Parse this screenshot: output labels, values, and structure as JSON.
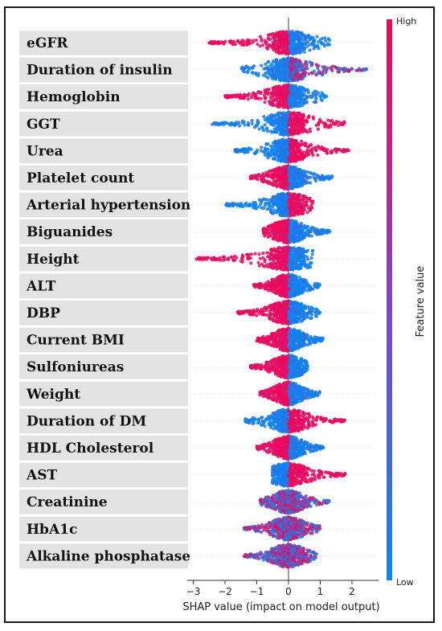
{
  "chart_data": {
    "type": "scatter",
    "subtype": "shap-beeswarm",
    "title": "",
    "xlabel": "SHAP value (impact on model output)",
    "xlim": [
      -3,
      3
    ],
    "xticks": [
      -3,
      -2,
      -1,
      0,
      1,
      2
    ],
    "colorbar": {
      "label": "Feature value",
      "high": "High",
      "low": "Low",
      "high_color": "#ff0052",
      "low_color": "#008bfb"
    },
    "features": [
      {
        "name": "eGFR",
        "min": -2.5,
        "max": 1.3,
        "mode": "split",
        "neg_color": "high",
        "pos_color": "low"
      },
      {
        "name": "Duration of insulin",
        "min": -1.5,
        "max": 2.5,
        "mode": "split",
        "neg_color": "low",
        "pos_color": "mixed"
      },
      {
        "name": "Hemoglobin",
        "min": -2.0,
        "max": 1.2,
        "mode": "split",
        "neg_color": "high",
        "pos_color": "low"
      },
      {
        "name": "GGT",
        "min": -2.4,
        "max": 1.8,
        "mode": "split",
        "neg_color": "low",
        "pos_color": "high"
      },
      {
        "name": "Urea",
        "min": -1.7,
        "max": 1.9,
        "mode": "split",
        "neg_color": "low",
        "pos_color": "high"
      },
      {
        "name": "Platelet count",
        "min": -1.2,
        "max": 1.4,
        "mode": "split",
        "neg_color": "high",
        "pos_color": "low"
      },
      {
        "name": "Arterial hypertension",
        "min": -2.0,
        "max": 0.8,
        "mode": "split",
        "neg_color": "low",
        "pos_color": "high"
      },
      {
        "name": "Biguanides",
        "min": -0.8,
        "max": 1.3,
        "mode": "split",
        "neg_color": "high",
        "pos_color": "low"
      },
      {
        "name": "Height",
        "min": -2.9,
        "max": 0.8,
        "mode": "split",
        "neg_color": "high",
        "pos_color": "low"
      },
      {
        "name": "ALT",
        "min": -1.1,
        "max": 1.0,
        "mode": "split",
        "neg_color": "high",
        "pos_color": "low"
      },
      {
        "name": "DBP",
        "min": -1.6,
        "max": 1.0,
        "mode": "split",
        "neg_color": "high",
        "pos_color": "low"
      },
      {
        "name": "Current BMI",
        "min": -1.0,
        "max": 1.1,
        "mode": "split",
        "neg_color": "high",
        "pos_color": "low"
      },
      {
        "name": "Sulfoniureas",
        "min": -1.2,
        "max": 0.6,
        "mode": "split",
        "neg_color": "high",
        "pos_color": "low"
      },
      {
        "name": "Weight",
        "min": -0.9,
        "max": 1.0,
        "mode": "split",
        "neg_color": "high",
        "pos_color": "low"
      },
      {
        "name": "Duration of DM",
        "min": -1.4,
        "max": 1.8,
        "mode": "split",
        "neg_color": "low",
        "pos_color": "high"
      },
      {
        "name": "HDL Cholesterol",
        "min": -1.0,
        "max": 1.1,
        "mode": "split",
        "neg_color": "high",
        "pos_color": "low"
      },
      {
        "name": "AST",
        "min": -0.5,
        "max": 1.8,
        "mode": "split",
        "neg_color": "low",
        "pos_color": "high"
      },
      {
        "name": "Creatinine",
        "min": -0.9,
        "max": 1.3,
        "mode": "mixed"
      },
      {
        "name": "HbA1c",
        "min": -1.4,
        "max": 1.0,
        "mode": "mixed"
      },
      {
        "name": "Alkaline phosphatase",
        "min": -1.4,
        "max": 0.9,
        "mode": "mixed"
      }
    ]
  }
}
